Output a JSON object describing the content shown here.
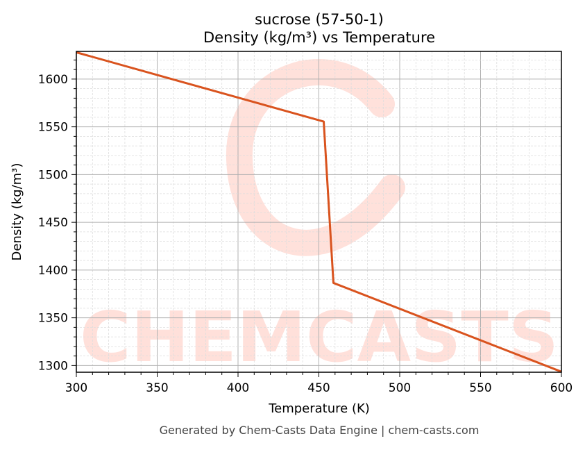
{
  "chart_data": {
    "type": "line",
    "title": "sucrose (57-50-1)",
    "subtitle": "Density (kg/m³) vs Temperature",
    "xlabel": "Temperature (K)",
    "ylabel": "Density (kg/m³)",
    "xlim": [
      300,
      600
    ],
    "ylim": [
      1293,
      1629
    ],
    "xticks": [
      300,
      350,
      400,
      450,
      500,
      550,
      600
    ],
    "yticks": [
      1300,
      1350,
      1400,
      1450,
      1500,
      1550,
      1600
    ],
    "grid": true,
    "minor_grid": true,
    "series": [
      {
        "color": "#d9531e",
        "x": [
          300,
          453,
          459,
          600
        ],
        "y": [
          1628,
          1555.5,
          1386.5,
          1293.5
        ]
      }
    ],
    "watermark": "CHEMCASTS",
    "watermark_color": "#ffd9d2"
  },
  "footer": "Generated by Chem-Casts Data Engine | chem-casts.com"
}
